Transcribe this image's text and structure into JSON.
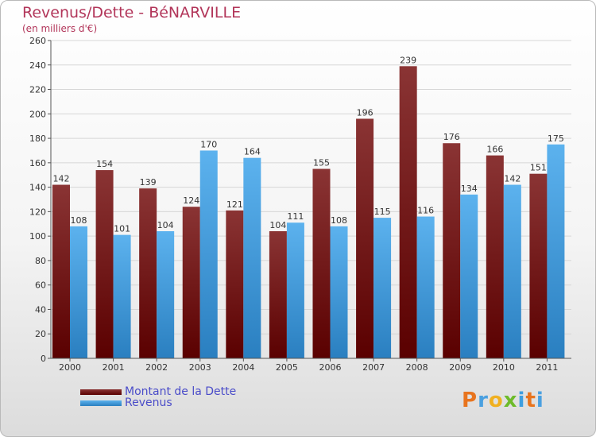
{
  "header": {
    "title": "Revenus/Dette - BéNARVILLE",
    "subtitle": "(en milliers d'€)"
  },
  "legend": [
    {
      "label": "Montant de la Dette",
      "color": "#6b1010"
    },
    {
      "label": "Revenus",
      "color": "#3d9ee0"
    }
  ],
  "brand": {
    "text": "Proxiti",
    "colors": [
      "#e8741e",
      "#4aa0e0",
      "#f0b020",
      "#6dbb2a",
      "#3d9ee0",
      "#e8741e",
      "#4aa0e0"
    ]
  },
  "chart_data": {
    "type": "bar",
    "title": "Revenus/Dette - BéNARVILLE",
    "subtitle": "(en milliers d'€)",
    "xlabel": "",
    "ylabel": "",
    "categories": [
      "2000",
      "2001",
      "2002",
      "2003",
      "2004",
      "2005",
      "2006",
      "2007",
      "2008",
      "2009",
      "2010",
      "2011"
    ],
    "series": [
      {
        "name": "Montant de la Dette",
        "values": [
          142,
          154,
          139,
          124,
          121,
          104,
          155,
          196,
          239,
          176,
          166,
          151
        ],
        "color": "#6b1010"
      },
      {
        "name": "Revenus",
        "values": [
          108,
          101,
          104,
          170,
          164,
          111,
          108,
          115,
          116,
          134,
          142,
          175
        ],
        "color": "#3d9ee0"
      }
    ],
    "ylim": [
      0,
      260
    ],
    "yticks": [
      0,
      20,
      40,
      60,
      80,
      100,
      120,
      140,
      160,
      180,
      200,
      220,
      240,
      260
    ],
    "grid": true,
    "legend_position": "bottom-left"
  }
}
